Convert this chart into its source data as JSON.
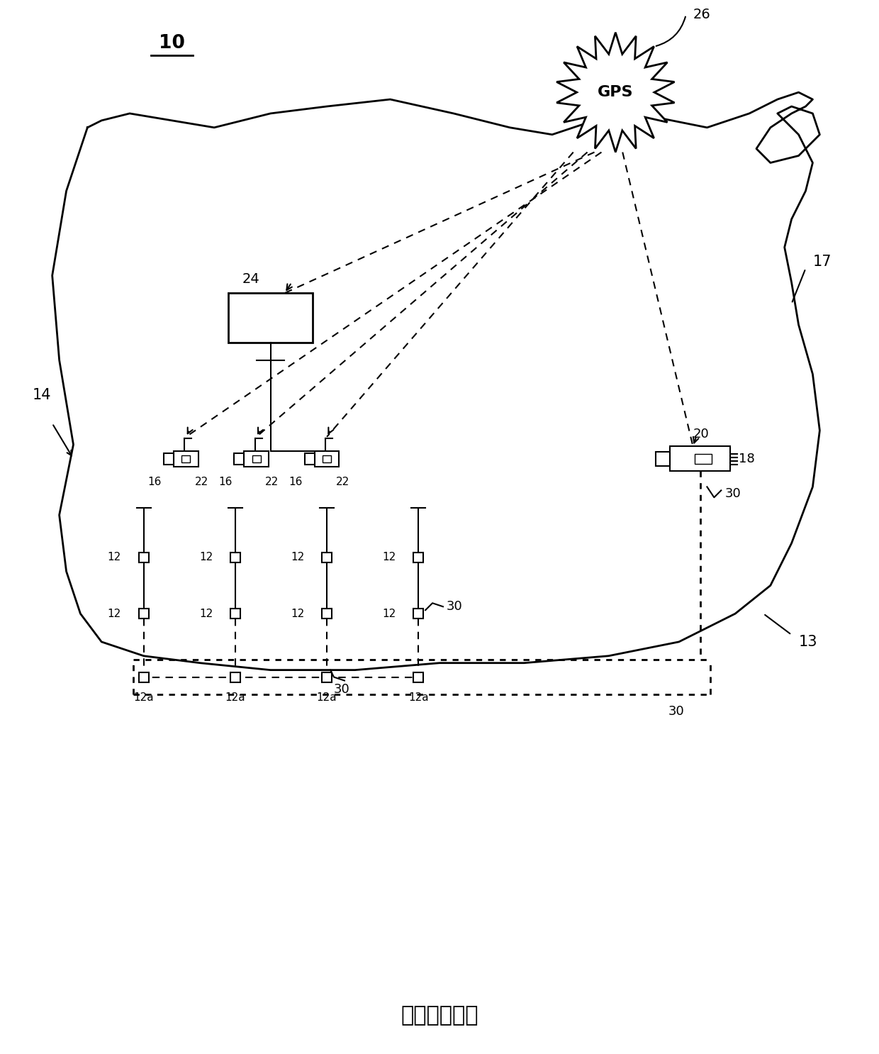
{
  "title": "（背景技术）",
  "label_10": "10",
  "label_14": "14",
  "label_17": "17",
  "label_13": "13",
  "label_26": "26",
  "label_24": "24",
  "label_20": "20",
  "label_18": "18",
  "label_30": "30",
  "label_16": "16",
  "label_22": "22",
  "label_12": "12",
  "label_12a": "12a",
  "bg_color": "#ffffff",
  "line_color": "#000000",
  "gps_text": "GPS",
  "figsize": [
    12.4,
    14.86
  ],
  "dpi": 100
}
